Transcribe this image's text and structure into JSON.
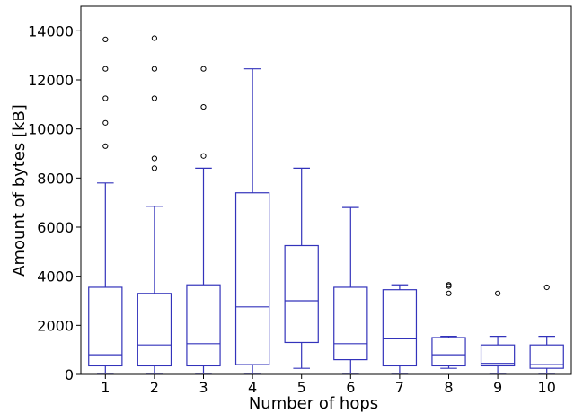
{
  "chart_data": {
    "type": "boxplot",
    "xlabel": "Number of hops",
    "ylabel": "Amount of bytes [kB]",
    "ylim": [
      0,
      15000
    ],
    "yticks": [
      0,
      2000,
      4000,
      6000,
      8000,
      10000,
      12000,
      14000
    ],
    "categories": [
      "1",
      "2",
      "3",
      "4",
      "5",
      "6",
      "7",
      "8",
      "9",
      "10"
    ],
    "box_color": "#3333bb",
    "outlier_color": "#000000",
    "grid": false,
    "boxes": [
      {
        "category": "1",
        "whisker_low": 50,
        "q1": 350,
        "median": 800,
        "q3": 3550,
        "whisker_high": 7800,
        "outliers": [
          9300,
          10250,
          11250,
          12450,
          13650
        ]
      },
      {
        "category": "2",
        "whisker_low": 50,
        "q1": 350,
        "median": 1200,
        "q3": 3300,
        "whisker_high": 6850,
        "outliers": [
          8400,
          8800,
          11250,
          12450,
          13700
        ]
      },
      {
        "category": "3",
        "whisker_low": 50,
        "q1": 350,
        "median": 1250,
        "q3": 3650,
        "whisker_high": 8400,
        "outliers": [
          8900,
          10900,
          12450
        ]
      },
      {
        "category": "4",
        "whisker_low": 50,
        "q1": 400,
        "median": 2750,
        "q3": 7400,
        "whisker_high": 12450,
        "outliers": []
      },
      {
        "category": "5",
        "whisker_low": 250,
        "q1": 1300,
        "median": 3000,
        "q3": 5250,
        "whisker_high": 8400,
        "outliers": []
      },
      {
        "category": "6",
        "whisker_low": 50,
        "q1": 600,
        "median": 1250,
        "q3": 3550,
        "whisker_high": 6800,
        "outliers": []
      },
      {
        "category": "7",
        "whisker_low": 50,
        "q1": 350,
        "median": 1450,
        "q3": 3450,
        "whisker_high": 3650,
        "outliers": []
      },
      {
        "category": "8",
        "whisker_low": 250,
        "q1": 350,
        "median": 800,
        "q3": 1500,
        "whisker_high": 1550,
        "outliers": [
          3300,
          3600,
          3650
        ]
      },
      {
        "category": "9",
        "whisker_low": 50,
        "q1": 350,
        "median": 450,
        "q3": 1200,
        "whisker_high": 1550,
        "outliers": [
          3300
        ]
      },
      {
        "category": "10",
        "whisker_low": 50,
        "q1": 250,
        "median": 400,
        "q3": 1200,
        "whisker_high": 1550,
        "outliers": [
          3550
        ]
      }
    ]
  }
}
